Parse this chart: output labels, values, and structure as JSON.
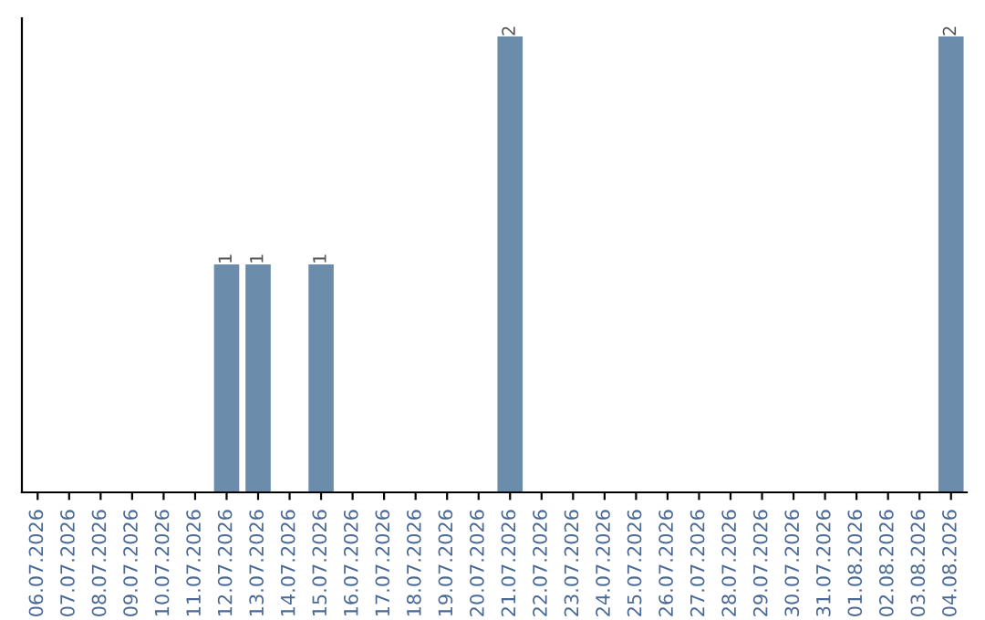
{
  "chart_data": {
    "type": "bar",
    "categories": [
      "06.07.2026",
      "07.07.2026",
      "08.07.2026",
      "09.07.2026",
      "10.07.2026",
      "11.07.2026",
      "12.07.2026",
      "13.07.2026",
      "14.07.2026",
      "15.07.2026",
      "16.07.2026",
      "17.07.2026",
      "18.07.2026",
      "19.07.2026",
      "20.07.2026",
      "21.07.2026",
      "22.07.2026",
      "23.07.2026",
      "24.07.2026",
      "25.07.2026",
      "26.07.2026",
      "27.07.2026",
      "28.07.2026",
      "29.07.2026",
      "30.07.2026",
      "31.07.2026",
      "01.08.2026",
      "02.08.2026",
      "03.08.2026",
      "04.08.2026"
    ],
    "values": [
      0,
      0,
      0,
      0,
      0,
      0,
      1,
      1,
      0,
      1,
      0,
      0,
      0,
      0,
      0,
      2,
      0,
      0,
      0,
      0,
      0,
      0,
      0,
      0,
      0,
      0,
      0,
      0,
      0,
      2
    ],
    "value_labels": [
      null,
      null,
      null,
      null,
      null,
      null,
      "1",
      "1",
      null,
      "1",
      null,
      null,
      null,
      null,
      null,
      "2",
      null,
      null,
      null,
      null,
      null,
      null,
      null,
      null,
      null,
      null,
      null,
      null,
      null,
      "2"
    ],
    "color": "#6b8cab",
    "tick_labels": "x",
    "grid": false
  }
}
